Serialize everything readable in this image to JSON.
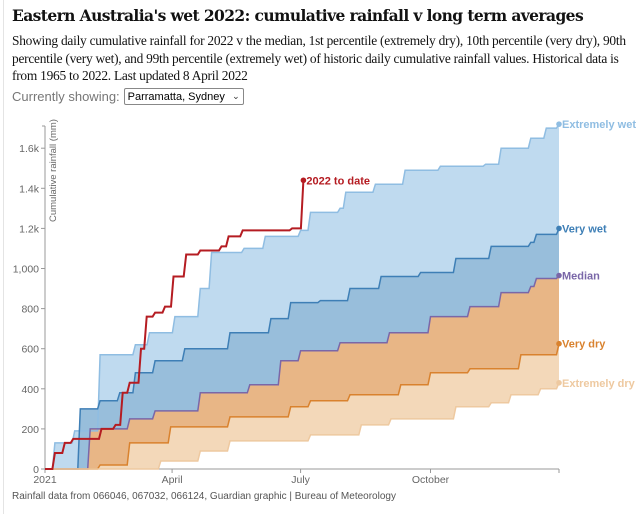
{
  "title": "Eastern Australia's wet 2022: cumulative rainfall v long term averages",
  "description": "Showing daily cumulative rainfall for 2022 v the median, 1st percentile (extremely dry), 10th percentile (very dry), 90th percentile (very wet), and 99th percentile (extremely wet) of historic daily cumulative rainfall values. Historical data is from 1965 to 2022. Last updated 8 April 2022",
  "selector": {
    "label": "Currently showing:",
    "value": "Parramatta, Sydney"
  },
  "footer": "Rainfall data from 066046, 067032, 066124, Guardian graphic | Bureau of Meteorology",
  "chart_data": {
    "type": "area",
    "ylabel": "Cumulative rainfall (mm)",
    "ylim": [
      0,
      1700
    ],
    "yticks": [
      {
        "v": 0,
        "label": "0"
      },
      {
        "v": 200,
        "label": "200"
      },
      {
        "v": 400,
        "label": "400"
      },
      {
        "v": 600,
        "label": "600"
      },
      {
        "v": 800,
        "label": "800"
      },
      {
        "v": 1000,
        "label": "1,000"
      },
      {
        "v": 1200,
        "label": "1.2k"
      },
      {
        "v": 1400,
        "label": "1.4k"
      },
      {
        "v": 1600,
        "label": "1.6k"
      }
    ],
    "xlim": [
      "2021-01-01",
      "2021-12-31"
    ],
    "xticks": [
      {
        "date": "2021-01-01",
        "label": "2021"
      },
      {
        "date": "2021-04-01",
        "label": "April"
      },
      {
        "date": "2021-07-01",
        "label": "July"
      },
      {
        "date": "2021-10-01",
        "label": "October"
      },
      {
        "date": "2021-12-31",
        "label": ""
      }
    ],
    "grid": false,
    "series": [
      {
        "name": "Extremely wet",
        "color": "#8fbde2",
        "fill": "#bfdaef",
        "points": [
          [
            "01-01",
            0
          ],
          [
            "01-08",
            130
          ],
          [
            "01-15",
            130
          ],
          [
            "01-22",
            190
          ],
          [
            "02-09",
            570
          ],
          [
            "03-06",
            620
          ],
          [
            "03-16",
            680
          ],
          [
            "04-03",
            760
          ],
          [
            "04-21",
            900
          ],
          [
            "04-29",
            1080
          ],
          [
            "05-22",
            1100
          ],
          [
            "06-06",
            1160
          ],
          [
            "07-01",
            1190
          ],
          [
            "07-08",
            1280
          ],
          [
            "07-29",
            1300
          ],
          [
            "08-02",
            1380
          ],
          [
            "08-23",
            1420
          ],
          [
            "09-13",
            1490
          ],
          [
            "10-08",
            1510
          ],
          [
            "11-09",
            1520
          ],
          [
            "11-20",
            1600
          ],
          [
            "12-11",
            1650
          ],
          [
            "12-22",
            1700
          ],
          [
            "12-31",
            1720
          ]
        ]
      },
      {
        "name": "Very wet",
        "color": "#3e7fb6",
        "fill": "#98bedb",
        "points": [
          [
            "01-01",
            0
          ],
          [
            "01-26",
            300
          ],
          [
            "02-09",
            340
          ],
          [
            "02-23",
            380
          ],
          [
            "03-06",
            480
          ],
          [
            "03-20",
            540
          ],
          [
            "04-10",
            600
          ],
          [
            "05-12",
            680
          ],
          [
            "06-10",
            750
          ],
          [
            "06-24",
            830
          ],
          [
            "07-15",
            840
          ],
          [
            "08-05",
            900
          ],
          [
            "08-27",
            960
          ],
          [
            "09-24",
            980
          ],
          [
            "10-19",
            1050
          ],
          [
            "11-13",
            1110
          ],
          [
            "12-11",
            1130
          ],
          [
            "12-15",
            1170
          ],
          [
            "12-31",
            1200
          ]
        ]
      },
      {
        "name": "Median",
        "color": "#7a67a8",
        "fill": "#e8b686",
        "points": [
          [
            "01-01",
            0
          ],
          [
            "02-02",
            200
          ],
          [
            "03-02",
            250
          ],
          [
            "03-20",
            290
          ],
          [
            "04-21",
            380
          ],
          [
            "05-26",
            420
          ],
          [
            "06-17",
            540
          ],
          [
            "07-01",
            590
          ],
          [
            "07-29",
            630
          ],
          [
            "09-02",
            680
          ],
          [
            "10-01",
            760
          ],
          [
            "10-29",
            810
          ],
          [
            "11-20",
            880
          ],
          [
            "12-11",
            910
          ],
          [
            "12-15",
            950
          ],
          [
            "12-31",
            965
          ]
        ]
      },
      {
        "name": "Very dry",
        "color": "#d9822e",
        "fill": "#f3d8b9",
        "points": [
          [
            "01-01",
            0
          ],
          [
            "02-09",
            20
          ],
          [
            "03-02",
            130
          ],
          [
            "03-31",
            210
          ],
          [
            "05-12",
            260
          ],
          [
            "06-24",
            310
          ],
          [
            "07-08",
            340
          ],
          [
            "08-05",
            370
          ],
          [
            "09-10",
            420
          ],
          [
            "10-01",
            480
          ],
          [
            "10-29",
            500
          ],
          [
            "12-04",
            570
          ],
          [
            "12-31",
            625
          ]
        ]
      },
      {
        "name": "Extremely dry",
        "color": "#eec9a0",
        "fill": "#ffffff",
        "points": [
          [
            "01-01",
            0
          ],
          [
            "02-05",
            0
          ],
          [
            "03-24",
            40
          ],
          [
            "04-21",
            90
          ],
          [
            "05-12",
            140
          ],
          [
            "07-08",
            170
          ],
          [
            "08-13",
            220
          ],
          [
            "09-03",
            250
          ],
          [
            "10-19",
            310
          ],
          [
            "11-13",
            330
          ],
          [
            "11-27",
            370
          ],
          [
            "12-18",
            400
          ],
          [
            "12-31",
            430
          ]
        ]
      }
    ],
    "current": {
      "name": "2022 to date",
      "color": "#b51c22",
      "points": [
        [
          "01-01",
          0
        ],
        [
          "01-08",
          80
        ],
        [
          "01-15",
          130
        ],
        [
          "01-21",
          150
        ],
        [
          "01-31",
          150
        ],
        [
          "02-10",
          200
        ],
        [
          "02-20",
          220
        ],
        [
          "02-25",
          380
        ],
        [
          "03-02",
          430
        ],
        [
          "03-10",
          600
        ],
        [
          "03-14",
          760
        ],
        [
          "03-20",
          780
        ],
        [
          "03-27",
          810
        ],
        [
          "04-02",
          960
        ],
        [
          "04-11",
          1070
        ],
        [
          "04-21",
          1090
        ],
        [
          "05-06",
          1110
        ],
        [
          "05-11",
          1160
        ],
        [
          "05-21",
          1190
        ],
        [
          "06-25",
          1200
        ],
        [
          "07-03",
          1440
        ]
      ]
    }
  }
}
